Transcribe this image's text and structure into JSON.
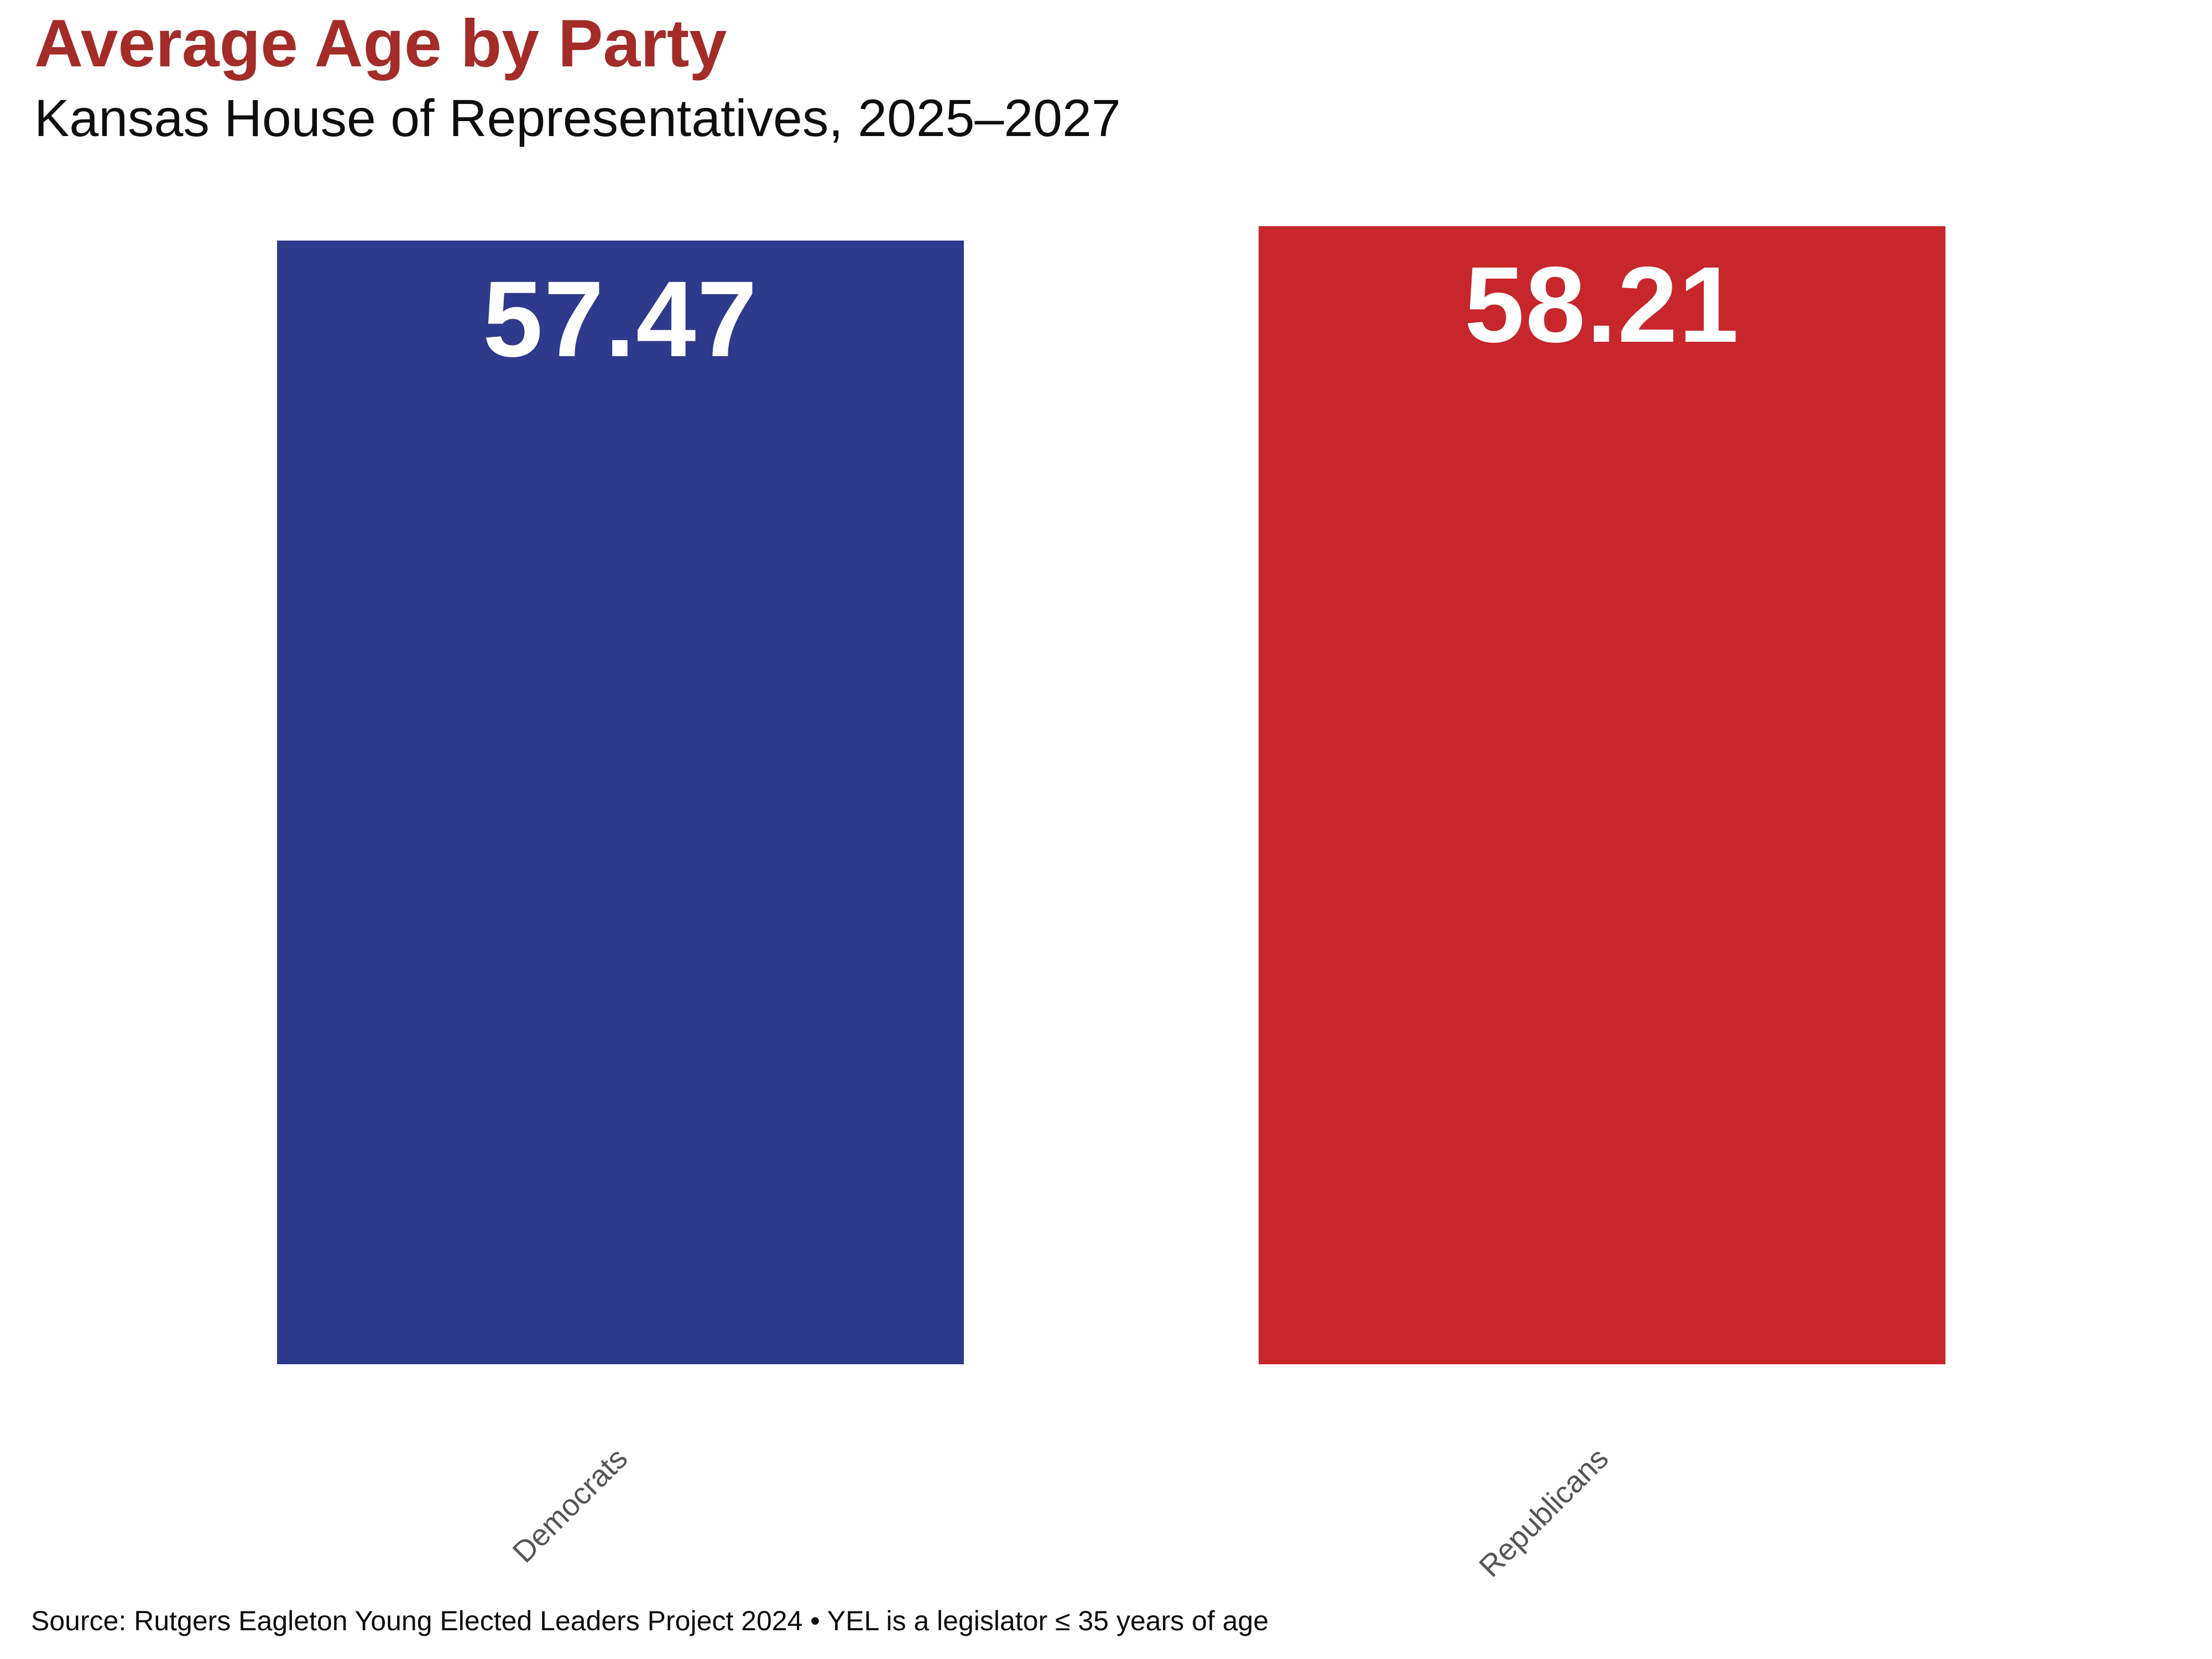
{
  "header": {
    "title": "Average Age by Party",
    "subtitle": "Kansas House of Representatives, 2025–2027",
    "title_color": "#A32C28",
    "subtitle_color": "#0E0E0E"
  },
  "chart_data": {
    "type": "bar",
    "title": "Average Age by Party",
    "subtitle": "Kansas House of Representatives, 2025–2027",
    "categories": [
      "Democrats",
      "Republicans"
    ],
    "values": [
      57.47,
      58.21
    ],
    "value_labels": [
      "57.47",
      "58.21"
    ],
    "series_colors": [
      "#2E3A8C",
      "#C7262B"
    ],
    "value_label_color": "#FFFFFF",
    "tick_label_color": "#555555",
    "tick_label_rotation_deg": 45,
    "xlabel": "",
    "ylabel": "",
    "ylim": [
      0,
      58.21
    ],
    "baseline": 0,
    "grid": false,
    "legend": "none",
    "orientation": "vertical"
  },
  "footer": {
    "source_note": "Source: Rutgers Eagleton Young Elected Leaders Project 2024 • YEL is a legislator ≤ 35 years of age"
  }
}
